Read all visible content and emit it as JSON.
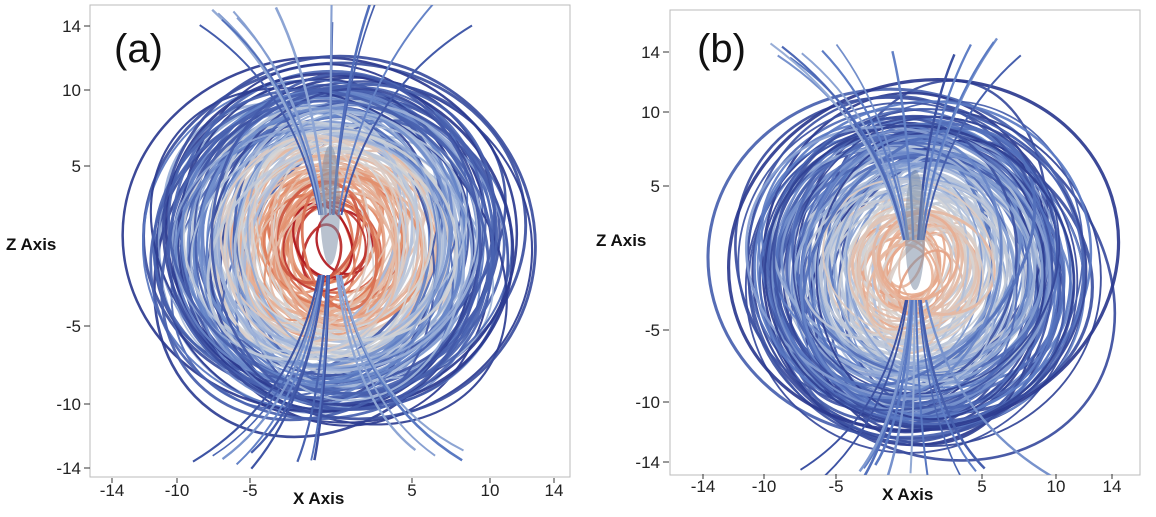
{
  "chart_data": [
    {
      "type": "streamline-3d",
      "panel_label": "(a)",
      "xlabel": "X Axis",
      "ylabel": "Z Axis",
      "x_ticks": [
        -14,
        -10,
        -5,
        5,
        10,
        14
      ],
      "y_ticks": [
        14,
        10,
        5,
        -5,
        -10,
        -14
      ],
      "xlim": [
        -15,
        15
      ],
      "ylim": [
        -14,
        15
      ],
      "colormap": [
        "#2b3a8f",
        "#5b7bc4",
        "#a9bcdc",
        "#d6d6d6",
        "#e8b49a",
        "#e07f5a",
        "#b0171d"
      ]
    },
    {
      "type": "streamline-3d",
      "panel_label": "(b)",
      "xlabel": "X Axis",
      "ylabel": "Z Axis",
      "x_ticks": [
        -14,
        -10,
        -5,
        5,
        10,
        14
      ],
      "y_ticks": [
        14,
        10,
        5,
        -5,
        -10,
        -14
      ],
      "xlim": [
        -17,
        16
      ],
      "ylim": [
        -14,
        17
      ],
      "colormap": [
        "#2b3a8f",
        "#5b7bc4",
        "#a9bcdc",
        "#d6d6d6",
        "#e8b49a",
        "#e07f5a",
        "#b0171d"
      ]
    }
  ]
}
